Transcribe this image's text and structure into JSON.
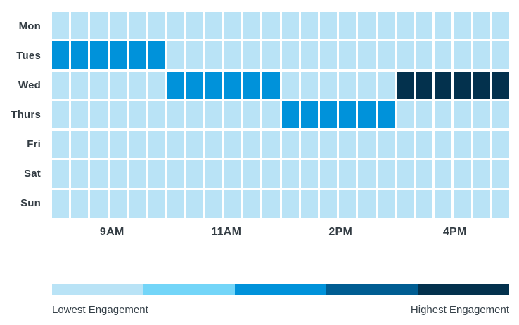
{
  "chart_data": {
    "type": "heatmap",
    "title": "",
    "xlabel": "",
    "ylabel": "",
    "rows": [
      "Mon",
      "Tues",
      "Wed",
      "Thurs",
      "Fri",
      "Sat",
      "Sun"
    ],
    "x_tick_labels": [
      "9AM",
      "11AM",
      "2PM",
      "4PM"
    ],
    "n_columns": 24,
    "columns_per_tick_group": 6,
    "grid": "on",
    "values": [
      [
        0,
        0,
        0,
        0,
        0,
        0,
        0,
        0,
        0,
        0,
        0,
        0,
        0,
        0,
        0,
        0,
        0,
        0,
        0,
        0,
        0,
        0,
        0,
        0
      ],
      [
        2,
        2,
        2,
        2,
        2,
        2,
        0,
        0,
        0,
        0,
        0,
        0,
        0,
        0,
        0,
        0,
        0,
        0,
        0,
        0,
        0,
        0,
        0,
        0
      ],
      [
        0,
        0,
        0,
        0,
        0,
        0,
        2,
        2,
        2,
        2,
        2,
        2,
        0,
        0,
        0,
        0,
        0,
        0,
        4,
        4,
        4,
        4,
        4,
        4
      ],
      [
        0,
        0,
        0,
        0,
        0,
        0,
        0,
        0,
        0,
        0,
        0,
        0,
        2,
        2,
        2,
        2,
        2,
        2,
        0,
        0,
        0,
        0,
        0,
        0
      ],
      [
        0,
        0,
        0,
        0,
        0,
        0,
        0,
        0,
        0,
        0,
        0,
        0,
        0,
        0,
        0,
        0,
        0,
        0,
        0,
        0,
        0,
        0,
        0,
        0
      ],
      [
        0,
        0,
        0,
        0,
        0,
        0,
        0,
        0,
        0,
        0,
        0,
        0,
        0,
        0,
        0,
        0,
        0,
        0,
        0,
        0,
        0,
        0,
        0,
        0
      ],
      [
        0,
        0,
        0,
        0,
        0,
        0,
        0,
        0,
        0,
        0,
        0,
        0,
        0,
        0,
        0,
        0,
        0,
        0,
        0,
        0,
        0,
        0,
        0,
        0
      ]
    ],
    "highlighted_runs": [
      {
        "day": "Tues",
        "time_group": "9AM",
        "level": 2
      },
      {
        "day": "Wed",
        "time_group": "11AM",
        "level": 2
      },
      {
        "day": "Thurs",
        "time_group": "2PM",
        "level": 2
      },
      {
        "day": "Wed",
        "time_group": "4PM",
        "level": 4
      }
    ],
    "scale_colors": [
      "#b9e3f6",
      "#73d5f8",
      "#0092da",
      "#005d92",
      "#03314d"
    ],
    "legend": {
      "position": "bottom",
      "low_label": "Lowest Engagement",
      "high_label": "Highest Engagement"
    }
  }
}
